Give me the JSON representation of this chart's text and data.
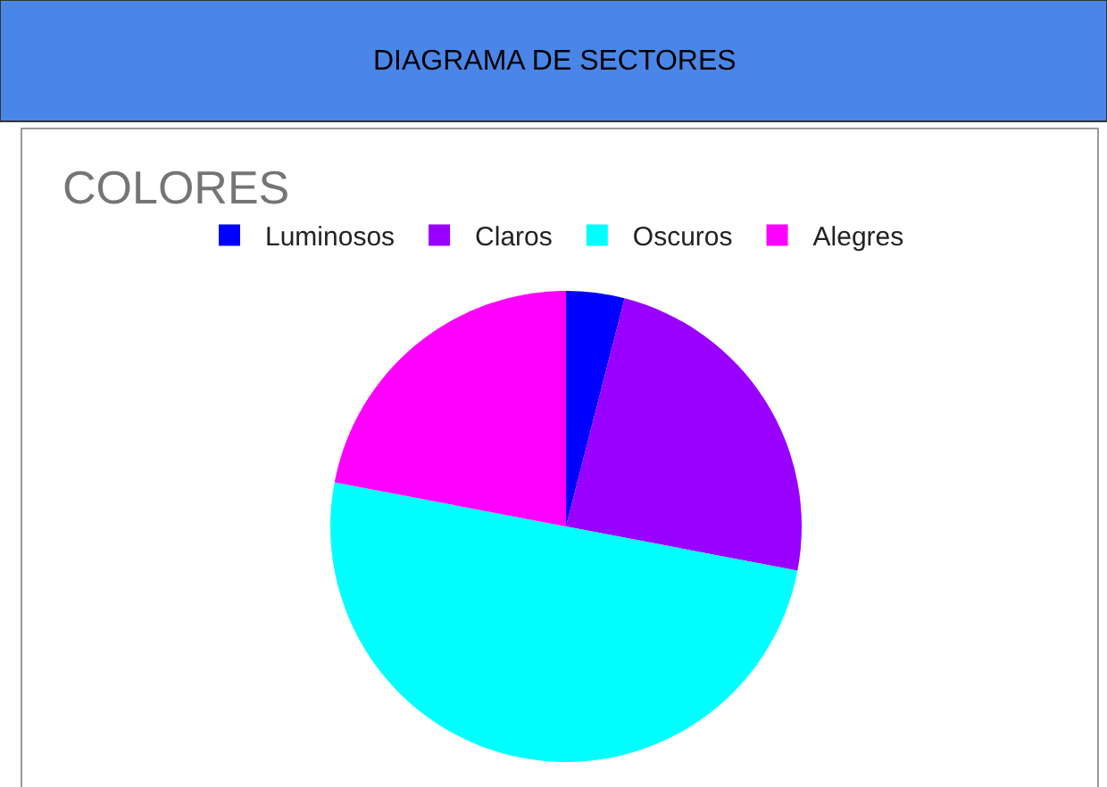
{
  "chart_data": {
    "type": "pie",
    "title": "COLORES",
    "annotations": [
      "DIAGRAMA DE SECTORES"
    ],
    "categories": [
      "Luminosos",
      "Claros",
      "Oscuros",
      "Alegres"
    ],
    "values": [
      4,
      24,
      50,
      22
    ],
    "colors": [
      "#0000ff",
      "#9900ff",
      "#00ffff",
      "#ff00ff"
    ],
    "legend": "top"
  }
}
